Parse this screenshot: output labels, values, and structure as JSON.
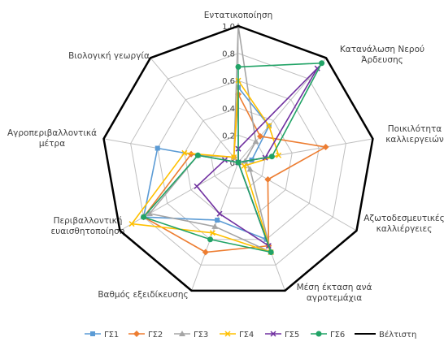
{
  "chart_data": {
    "type": "radar",
    "axes": [
      [
        "Εντατικοποίηση"
      ],
      [
        "Κατανάλωση Νερού",
        "Άρδευσης"
      ],
      [
        "Ποικιλότητα",
        "καλλιεργειών"
      ],
      [
        "Αζωτοδεσμευτικές",
        "καλλιέργειες"
      ],
      [
        "Μέση έκταση ανά",
        "αγροτεμάχια"
      ],
      [
        "Βαθμός εξειδίκευσης"
      ],
      [
        "Περιβαλλοντική",
        "ευαισθητοποίηση"
      ],
      [
        "Αγροπεριβαλλοντικά",
        "μέτρα"
      ],
      [
        "Βιολογική γεωργία"
      ]
    ],
    "rlim": [
      0,
      1
    ],
    "ticks": [
      "0",
      "0,2",
      "0,4",
      "0,6",
      "0,8",
      "1,0"
    ],
    "grid": true,
    "legend_position": "bottom",
    "series": [
      {
        "name": "ΓΣ1",
        "color": "#5b9bd5",
        "marker": "square",
        "values": [
          0.55,
          0.35,
          0.1,
          0.0,
          0.6,
          0.45,
          0.8,
          0.6,
          0.0
        ]
      },
      {
        "name": "ΓΣ2",
        "color": "#ed7d31",
        "marker": "diamond",
        "values": [
          0.5,
          0.25,
          0.65,
          0.25,
          0.65,
          0.7,
          0.8,
          0.35,
          0.05
        ]
      },
      {
        "name": "ΓΣ3",
        "color": "#a5a5a5",
        "marker": "triangle",
        "values": [
          1.0,
          0.2,
          0.05,
          0.1,
          0.7,
          0.5,
          0.75,
          0.3,
          0.05
        ]
      },
      {
        "name": "ΓΣ4",
        "color": "#ffc000",
        "marker": "x",
        "values": [
          0.6,
          0.35,
          0.3,
          0.05,
          0.7,
          0.55,
          0.9,
          0.4,
          0.05
        ]
      },
      {
        "name": "ΓΣ5",
        "color": "#7030a0",
        "marker": "x",
        "values": [
          0.1,
          0.9,
          0.2,
          0.0,
          0.65,
          0.4,
          0.35,
          0.1,
          0.0
        ]
      },
      {
        "name": "ΓΣ6",
        "color": "#21a366",
        "marker": "circle",
        "values": [
          0.7,
          0.95,
          0.25,
          0.0,
          0.7,
          0.6,
          0.8,
          0.3,
          0.0
        ]
      },
      {
        "name": "Βέλτιστη",
        "color": "#000000",
        "marker": "none",
        "values": [
          1,
          1,
          1,
          1,
          1,
          1,
          1,
          1,
          1
        ]
      }
    ]
  }
}
